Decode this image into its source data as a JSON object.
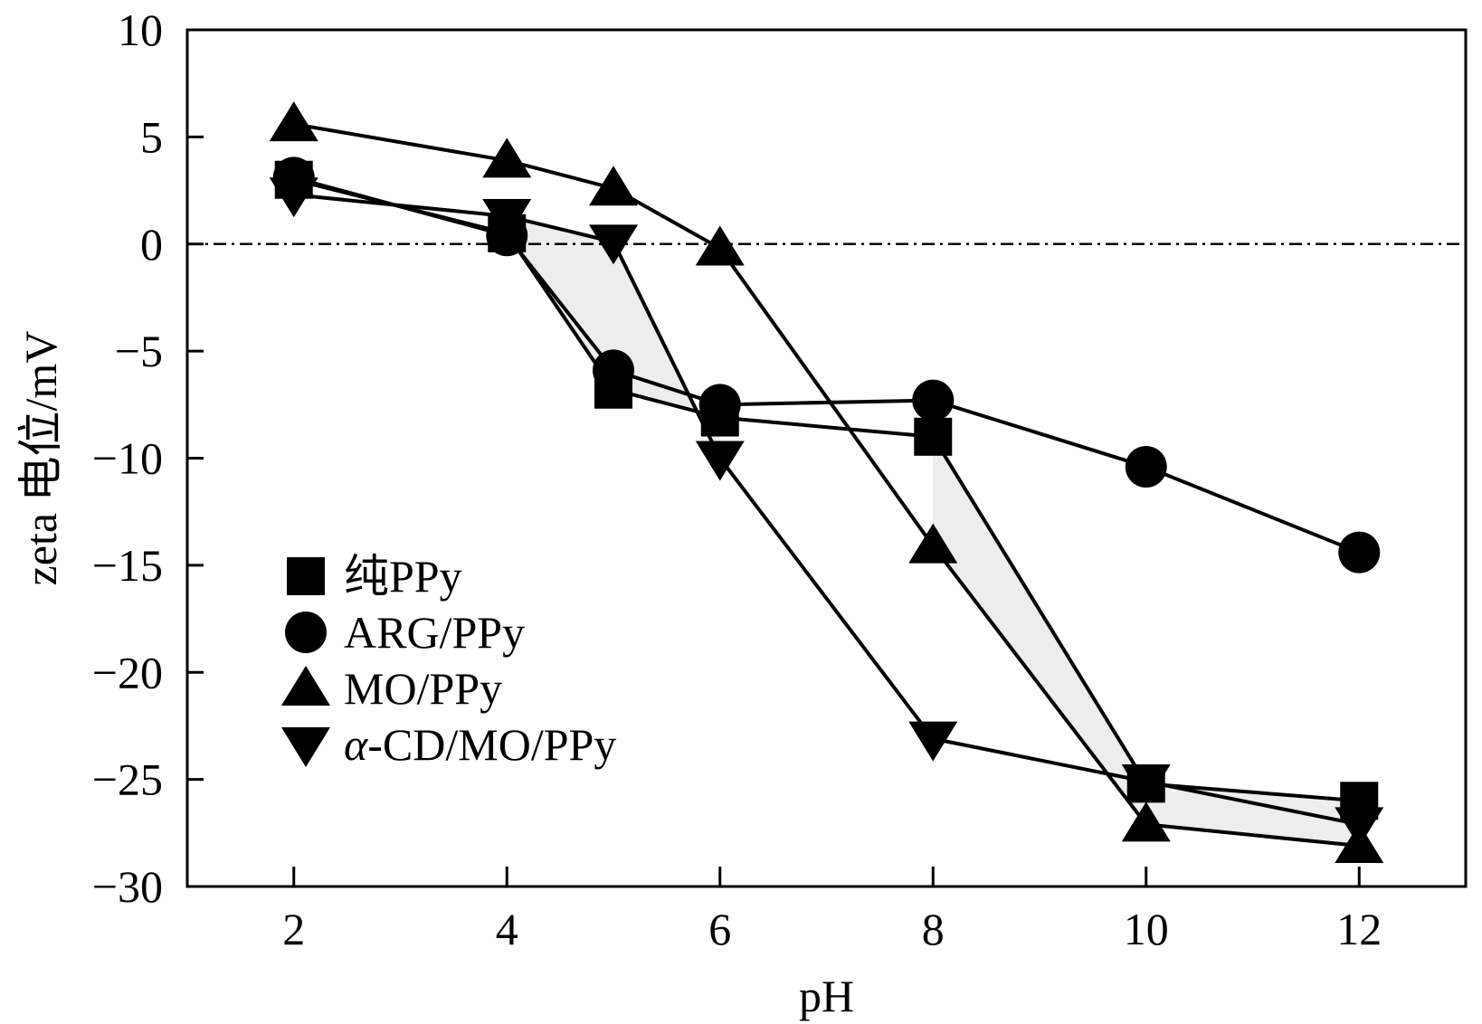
{
  "chart_data": {
    "type": "line",
    "xlabel": "pH",
    "ylabel": "zeta 电位/mV",
    "xlim": [
      1,
      13
    ],
    "ylim": [
      -30,
      10
    ],
    "xticks": [
      2,
      4,
      6,
      8,
      10,
      12
    ],
    "yticks": [
      -30,
      -25,
      -20,
      -15,
      -10,
      -5,
      0,
      5,
      10
    ],
    "ytick_labels": [
      "−30",
      "−25",
      "−20",
      "−15",
      "−10",
      "−5",
      "0",
      "5",
      "10"
    ],
    "reference_line": {
      "y": 0,
      "style": "dash-dot"
    },
    "grid": false,
    "legend_position": "lower-left",
    "series": [
      {
        "name": "纯PPy",
        "marker": "square",
        "x": [
          2,
          4,
          5,
          6,
          8,
          10,
          12
        ],
        "y": [
          3.0,
          0.5,
          -6.8,
          -8.1,
          -9.0,
          -25.2,
          -26.0
        ]
      },
      {
        "name": "ARG/PPy",
        "marker": "circle",
        "x": [
          2,
          4,
          5,
          6,
          8,
          10,
          12
        ],
        "y": [
          3.1,
          0.4,
          -5.9,
          -7.5,
          -7.3,
          -10.4,
          -14.4
        ]
      },
      {
        "name": "MO/PPy",
        "marker": "triangle-up",
        "x": [
          2,
          4,
          5,
          6,
          8,
          10,
          12
        ],
        "y": [
          5.6,
          3.9,
          2.6,
          -0.2,
          -14.1,
          -27.1,
          -28.1
        ]
      },
      {
        "name": "α-CD/MO/PPy",
        "marker": "triangle-down",
        "x": [
          2,
          4,
          5,
          6,
          8,
          10,
          12
        ],
        "y": [
          2.3,
          1.3,
          0.1,
          -10.0,
          -23.1,
          -25.1,
          -27.1
        ]
      }
    ]
  }
}
